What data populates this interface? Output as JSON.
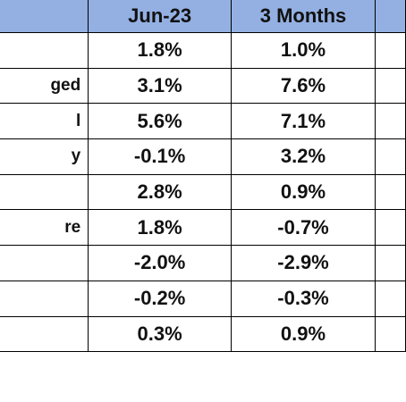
{
  "columns": [
    "Jun-23",
    "3 Months"
  ],
  "rows": [
    {
      "label": "",
      "jun23": "1.8%",
      "three_months": "1.0%"
    },
    {
      "label": "ged",
      "jun23": "3.1%",
      "three_months": "7.6%"
    },
    {
      "label": "l",
      "jun23": "5.6%",
      "three_months": "7.1%"
    },
    {
      "label": "y",
      "jun23": "-0.1%",
      "three_months": "3.2%"
    },
    {
      "label": "",
      "jun23": "2.8%",
      "three_months": "0.9%"
    },
    {
      "label": "re",
      "jun23": "1.8%",
      "three_months": "-0.7%"
    },
    {
      "label": "",
      "jun23": "-2.0%",
      "three_months": "-2.9%"
    },
    {
      "label": "",
      "jun23": "-0.2%",
      "three_months": "-0.3%"
    },
    {
      "label": "",
      "jun23": "0.3%",
      "three_months": "0.9%"
    }
  ]
}
